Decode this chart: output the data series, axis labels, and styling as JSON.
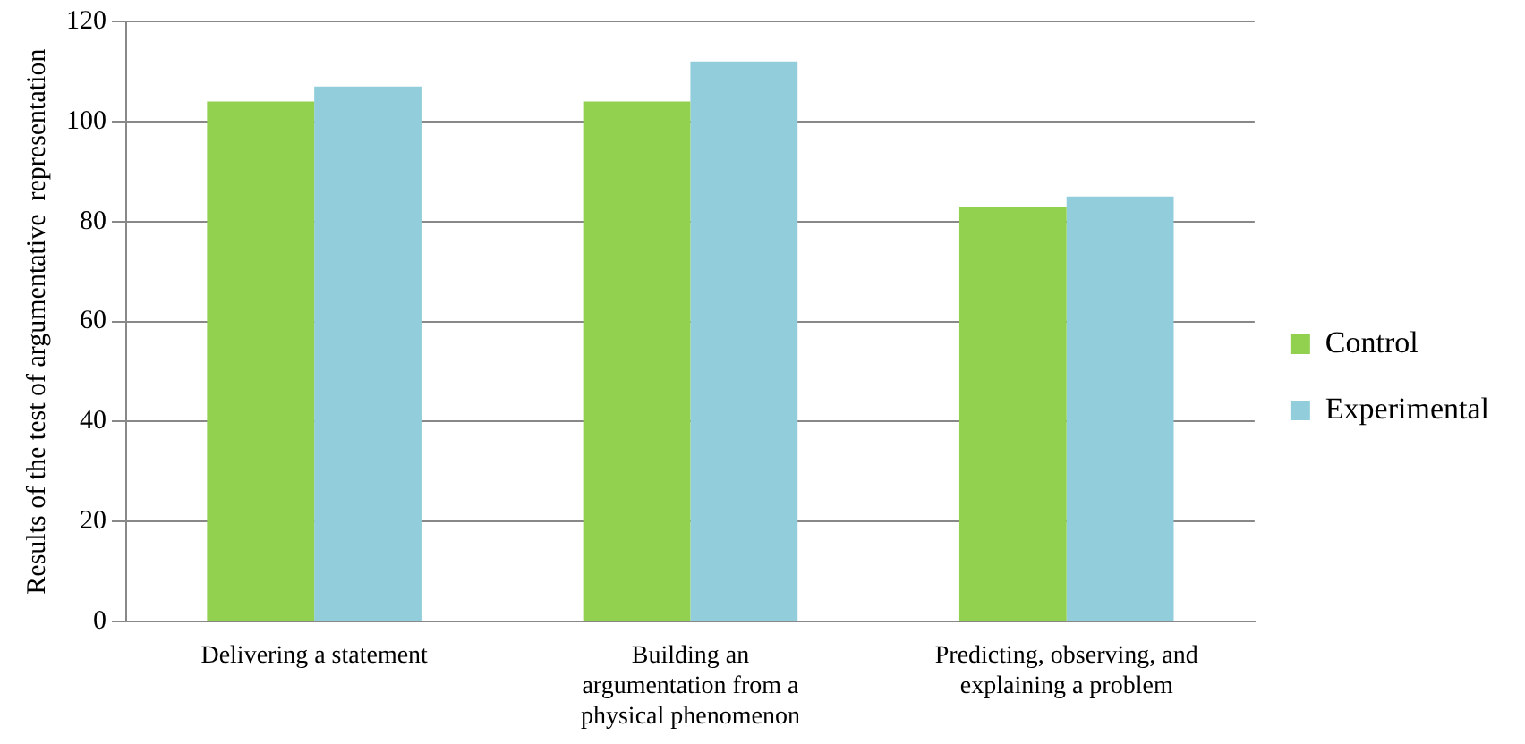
{
  "chart_data": {
    "type": "bar",
    "ylabel": "Results of the test of argumentative  representation",
    "categories": [
      "Delivering a statement",
      "Building an argumentation from a physical phenomenon",
      "Predicting, observing, and explaining a problem"
    ],
    "series": [
      {
        "name": "Control",
        "color": "#92d050",
        "values": [
          104,
          104,
          83
        ]
      },
      {
        "name": "Experimental",
        "color": "#92cddc",
        "values": [
          107,
          112,
          85
        ]
      }
    ],
    "ylim": [
      0,
      120
    ],
    "yticks": [
      0,
      20,
      40,
      60,
      80,
      100,
      120
    ],
    "grid": "y",
    "legend": "right"
  }
}
